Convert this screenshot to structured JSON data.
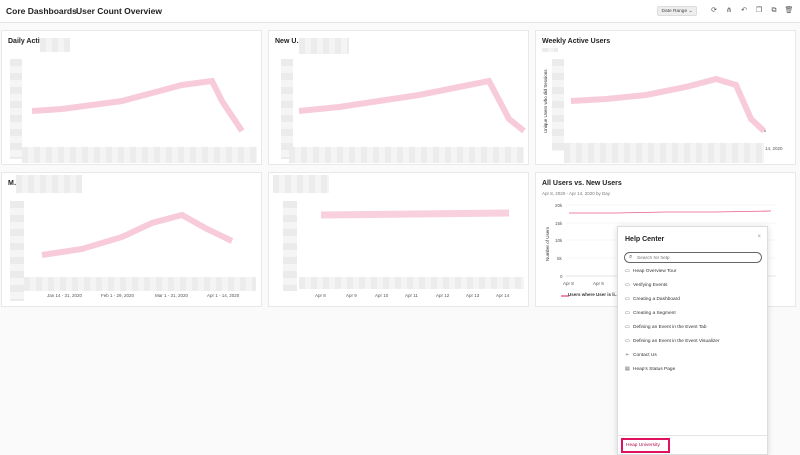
{
  "breadcrumb": {
    "parent": "Core Dashboards",
    "separator": "›",
    "current": "User Count Overview"
  },
  "toolbar": {
    "date_range_label": "Date Range ⌄",
    "icons": [
      "refresh-icon",
      "share-icon",
      "undo-icon",
      "duplicate-icon",
      "copy-icon",
      "trash-icon"
    ]
  },
  "cards": {
    "daily": {
      "title": "Daily Active U…",
      "x_ticks": []
    },
    "new": {
      "title": "New U…"
    },
    "weekly": {
      "title": "Weekly Active Users",
      "ylabel": "Unique Users who did Sessions",
      "x_end": "14, 2020"
    },
    "monthly": {
      "title": "M…",
      "x_ticks": [
        "Jan 14 - 31, 2020",
        "Feb 1 - 29, 2020",
        "Mar 1 - 31, 2020",
        "Apr 1 - 14, 2020"
      ]
    },
    "daily_new": {
      "x_ticks": [
        "Apr 8",
        "Apr 9",
        "Apr 10",
        "Apr 11",
        "Apr 12",
        "Apr 13",
        "Apr 14"
      ]
    },
    "all_vs_new": {
      "title": "All Users vs. New Users",
      "subtitle": "Apr 8, 2020 - Apr 14, 2020 by Day",
      "ylabel": "Number of Users",
      "y_ticks": [
        "20k",
        "15k",
        "10k",
        "5k",
        "0"
      ],
      "x_ticks": [
        "Apr 8",
        "Apr 9"
      ],
      "legend": "Users where User is li…"
    }
  },
  "help_center": {
    "title": "Help Center",
    "close": "×",
    "search_placeholder": "Search for help",
    "items": [
      {
        "label": "Heap Overview Tour",
        "icon": "monitor-icon"
      },
      {
        "label": "Verifying Events",
        "icon": "monitor-icon"
      },
      {
        "label": "Creating a Dashboard",
        "icon": "monitor-icon"
      },
      {
        "label": "Creating a Segment",
        "icon": "monitor-icon"
      },
      {
        "label": "Defining an Event in the Event Tab",
        "icon": "monitor-icon"
      },
      {
        "label": "Defining an Event in the Event Visualizer",
        "icon": "monitor-icon"
      },
      {
        "label": "Contact Us",
        "icon": "send-icon"
      },
      {
        "label": "Heap's Status Page",
        "icon": "document-icon"
      }
    ],
    "footer_link": "Heap University"
  },
  "colors": {
    "accent": "#e0115f",
    "line": "#f3a9c2"
  }
}
